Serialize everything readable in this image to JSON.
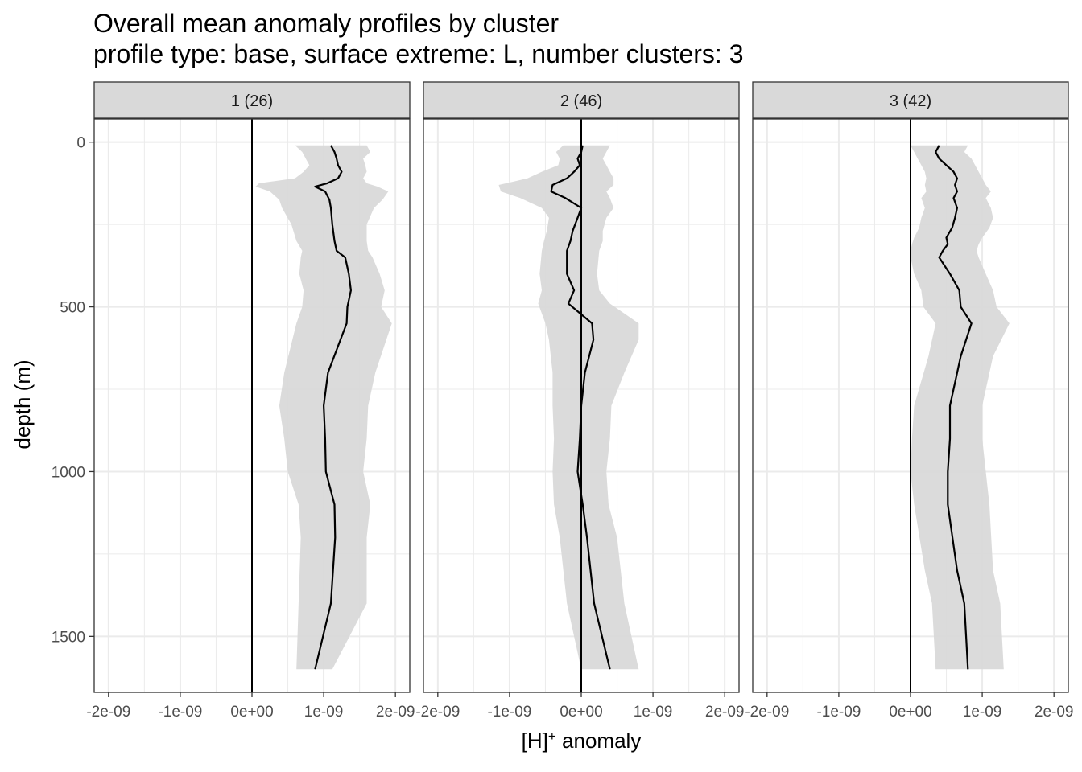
{
  "chart_data": {
    "type": "line",
    "title": "Overall mean anomaly profiles by cluster",
    "subtitle": "profile type: base, surface extreme: L, number clusters: 3",
    "xlabel": "[H]",
    "xlabel_sup": "+",
    "xlabel_suffix": " anomaly",
    "ylabel": "depth (m)",
    "xlim": [
      -2.2e-09,
      2.2e-09
    ],
    "ylim": [
      1670,
      -70
    ],
    "x_ticks": [
      -2e-09,
      -1e-09,
      0,
      1e-09,
      2e-09
    ],
    "x_tick_labels": [
      "-2e-09",
      "-1e-09",
      "0e+00",
      "1e-09",
      "2e-09"
    ],
    "y_ticks": [
      0,
      500,
      1000,
      1500
    ],
    "y_tick_labels": [
      "0",
      "500",
      "1000",
      "1500"
    ],
    "reference_line_x": 0,
    "grid": true,
    "colors": {
      "line": "#000000",
      "ribbon": "#d9d9d9",
      "strip": "#d9d9d9",
      "grid": "#ebebeb",
      "border": "#333333"
    },
    "panels": [
      {
        "label": "1 (26)",
        "profile": [
          {
            "depth": 10,
            "mean": 1.1e-09,
            "low": 6e-10,
            "high": 1.6e-09
          },
          {
            "depth": 30,
            "mean": 1.15e-09,
            "low": 7e-10,
            "high": 1.65e-09
          },
          {
            "depth": 50,
            "mean": 1.18e-09,
            "low": 7.5e-10,
            "high": 1.55e-09
          },
          {
            "depth": 70,
            "mean": 1.2e-09,
            "low": 8e-10,
            "high": 1.58e-09
          },
          {
            "depth": 90,
            "mean": 1.25e-09,
            "low": 7.2e-10,
            "high": 1.6e-09
          },
          {
            "depth": 110,
            "mean": 1.2e-09,
            "low": 6e-10,
            "high": 1.55e-09
          },
          {
            "depth": 125,
            "mean": 1.05e-09,
            "low": 1e-10,
            "high": 1.6e-09
          },
          {
            "depth": 135,
            "mean": 8.8e-10,
            "low": 5e-11,
            "high": 1.75e-09
          },
          {
            "depth": 150,
            "mean": 1.02e-09,
            "low": 2.5e-10,
            "high": 1.9e-09
          },
          {
            "depth": 175,
            "mean": 1.08e-09,
            "low": 3.8e-10,
            "high": 1.82e-09
          },
          {
            "depth": 200,
            "mean": 1.1e-09,
            "low": 4.2e-10,
            "high": 1.7e-09
          },
          {
            "depth": 250,
            "mean": 1.12e-09,
            "low": 5.5e-10,
            "high": 1.6e-09
          },
          {
            "depth": 300,
            "mean": 1.15e-09,
            "low": 6.2e-10,
            "high": 1.6e-09
          },
          {
            "depth": 330,
            "mean": 1.18e-09,
            "low": 7e-10,
            "high": 1.62e-09
          },
          {
            "depth": 350,
            "mean": 1.3e-09,
            "low": 6.8e-10,
            "high": 1.68e-09
          },
          {
            "depth": 400,
            "mean": 1.35e-09,
            "low": 6.6e-10,
            "high": 1.78e-09
          },
          {
            "depth": 450,
            "mean": 1.38e-09,
            "low": 7.2e-10,
            "high": 1.85e-09
          },
          {
            "depth": 500,
            "mean": 1.33e-09,
            "low": 7e-10,
            "high": 1.8e-09
          },
          {
            "depth": 550,
            "mean": 1.32e-09,
            "low": 6.2e-10,
            "high": 1.95e-09
          },
          {
            "depth": 700,
            "mean": 1.06e-09,
            "low": 4.5e-10,
            "high": 1.72e-09
          },
          {
            "depth": 800,
            "mean": 1e-09,
            "low": 3.8e-10,
            "high": 1.62e-09
          },
          {
            "depth": 900,
            "mean": 1.02e-09,
            "low": 4.5e-10,
            "high": 1.6e-09
          },
          {
            "depth": 1000,
            "mean": 1.03e-09,
            "low": 5e-10,
            "high": 1.55e-09
          },
          {
            "depth": 1100,
            "mean": 1.15e-09,
            "low": 6.5e-10,
            "high": 1.65e-09
          },
          {
            "depth": 1200,
            "mean": 1.16e-09,
            "low": 6.8e-10,
            "high": 1.6e-09
          },
          {
            "depth": 1400,
            "mean": 1.1e-09,
            "low": 6.5e-10,
            "high": 1.6e-09
          },
          {
            "depth": 1600,
            "mean": 8.8e-10,
            "low": 6.2e-10,
            "high": 1.12e-09
          }
        ]
      },
      {
        "label": "2 (46)",
        "profile": [
          {
            "depth": 10,
            "mean": 2e-11,
            "low": -2.5e-10,
            "high": 4e-10
          },
          {
            "depth": 30,
            "mean": 0.0,
            "low": -3.5e-10,
            "high": 3.5e-10
          },
          {
            "depth": 50,
            "mean": -5e-11,
            "low": -3e-10,
            "high": 3e-10
          },
          {
            "depth": 70,
            "mean": -2e-11,
            "low": -3.2e-10,
            "high": 3.5e-10
          },
          {
            "depth": 90,
            "mean": -1e-10,
            "low": -5.5e-10,
            "high": 4e-10
          },
          {
            "depth": 110,
            "mean": -2e-10,
            "low": -7.5e-10,
            "high": 4.5e-10
          },
          {
            "depth": 130,
            "mean": -4e-10,
            "low": -1.15e-09,
            "high": 4.5e-10
          },
          {
            "depth": 150,
            "mean": -4.2e-10,
            "low": -1.12e-09,
            "high": 3.5e-10
          },
          {
            "depth": 170,
            "mean": -2.2e-10,
            "low": -8.5e-10,
            "high": 4e-10
          },
          {
            "depth": 200,
            "mean": 0.0,
            "low": -5.5e-10,
            "high": 4.5e-10
          },
          {
            "depth": 230,
            "mean": -5e-11,
            "low": -4.5e-10,
            "high": 3.5e-10
          },
          {
            "depth": 270,
            "mean": -1.2e-10,
            "low": -4.8e-10,
            "high": 3e-10
          },
          {
            "depth": 300,
            "mean": -1.5e-10,
            "low": -5.2e-10,
            "high": 3e-10
          },
          {
            "depth": 330,
            "mean": -2e-10,
            "low": -5.5e-10,
            "high": 2.5e-10
          },
          {
            "depth": 400,
            "mean": -2e-10,
            "low": -5.8e-10,
            "high": 2.2e-10
          },
          {
            "depth": 450,
            "mean": -1e-10,
            "low": -5.5e-10,
            "high": 2.5e-10
          },
          {
            "depth": 490,
            "mean": -1.8e-10,
            "low": -6e-10,
            "high": 4e-10
          },
          {
            "depth": 550,
            "mean": 1.5e-10,
            "low": -5e-10,
            "high": 8e-10
          },
          {
            "depth": 600,
            "mean": 1.7e-10,
            "low": -4.5e-10,
            "high": 8e-10
          },
          {
            "depth": 700,
            "mean": 5e-11,
            "low": -4e-10,
            "high": 6e-10
          },
          {
            "depth": 800,
            "mean": 0.0,
            "low": -4e-10,
            "high": 4.2e-10
          },
          {
            "depth": 900,
            "mean": -2e-11,
            "low": -3.8e-10,
            "high": 4e-10
          },
          {
            "depth": 1000,
            "mean": -5e-11,
            "low": -4e-10,
            "high": 3.5e-10
          },
          {
            "depth": 1100,
            "mean": 2e-11,
            "low": -3.8e-10,
            "high": 3.8e-10
          },
          {
            "depth": 1200,
            "mean": 8e-11,
            "low": -3e-10,
            "high": 5e-10
          },
          {
            "depth": 1400,
            "mean": 1.8e-10,
            "low": -2e-10,
            "high": 6e-10
          },
          {
            "depth": 1600,
            "mean": 4e-10,
            "low": 0.0,
            "high": 8e-10
          }
        ]
      },
      {
        "label": "3 (42)",
        "profile": [
          {
            "depth": 10,
            "mean": 4e-10,
            "low": 0.0,
            "high": 8e-10
          },
          {
            "depth": 30,
            "mean": 3.5e-10,
            "low": 5e-11,
            "high": 7.5e-10
          },
          {
            "depth": 50,
            "mean": 4e-10,
            "low": 1e-10,
            "high": 8.5e-10
          },
          {
            "depth": 70,
            "mean": 5e-10,
            "low": 1.5e-10,
            "high": 9e-10
          },
          {
            "depth": 90,
            "mean": 6e-10,
            "low": 2e-10,
            "high": 9.5e-10
          },
          {
            "depth": 110,
            "mean": 6.5e-10,
            "low": 2.2e-10,
            "high": 1e-09
          },
          {
            "depth": 130,
            "mean": 6.2e-10,
            "low": 2e-10,
            "high": 1.05e-09
          },
          {
            "depth": 150,
            "mean": 6.5e-10,
            "low": 2.2e-10,
            "high": 1.12e-09
          },
          {
            "depth": 170,
            "mean": 6e-10,
            "low": 1.5e-10,
            "high": 1.05e-09
          },
          {
            "depth": 200,
            "mean": 6.5e-10,
            "low": 2e-10,
            "high": 1.12e-09
          },
          {
            "depth": 230,
            "mean": 6.2e-10,
            "low": 1.5e-10,
            "high": 1.15e-09
          },
          {
            "depth": 260,
            "mean": 5.8e-10,
            "low": 1.2e-10,
            "high": 1.1e-09
          },
          {
            "depth": 290,
            "mean": 5e-10,
            "low": 5e-11,
            "high": 1e-09
          },
          {
            "depth": 310,
            "mean": 5.2e-10,
            "low": 2e-11,
            "high": 9.5e-10
          },
          {
            "depth": 330,
            "mean": 4.5e-10,
            "low": 0.0,
            "high": 9.2e-10
          },
          {
            "depth": 350,
            "mean": 4e-10,
            "low": 0.0,
            "high": 9.5e-10
          },
          {
            "depth": 400,
            "mean": 5.5e-10,
            "low": 5e-11,
            "high": 1.05e-09
          },
          {
            "depth": 450,
            "mean": 6.8e-10,
            "low": 1.5e-10,
            "high": 1.15e-09
          },
          {
            "depth": 500,
            "mean": 7e-10,
            "low": 1.8e-10,
            "high": 1.2e-09
          },
          {
            "depth": 550,
            "mean": 8.5e-10,
            "low": 3.5e-10,
            "high": 1.38e-09
          },
          {
            "depth": 650,
            "mean": 7e-10,
            "low": 2.5e-10,
            "high": 1.15e-09
          },
          {
            "depth": 800,
            "mean": 5.5e-10,
            "low": 5e-11,
            "high": 1e-09
          },
          {
            "depth": 900,
            "mean": 5.5e-10,
            "low": 2e-11,
            "high": 1e-09
          },
          {
            "depth": 1000,
            "mean": 5.2e-10,
            "low": 0.0,
            "high": 1.05e-09
          },
          {
            "depth": 1100,
            "mean": 5.2e-10,
            "low": 5e-11,
            "high": 1.1e-09
          },
          {
            "depth": 1300,
            "mean": 6.5e-10,
            "low": 2e-10,
            "high": 1.15e-09
          },
          {
            "depth": 1400,
            "mean": 7.5e-10,
            "low": 3e-10,
            "high": 1.25e-09
          },
          {
            "depth": 1600,
            "mean": 8e-10,
            "low": 3.5e-10,
            "high": 1.3e-09
          }
        ]
      }
    ]
  }
}
